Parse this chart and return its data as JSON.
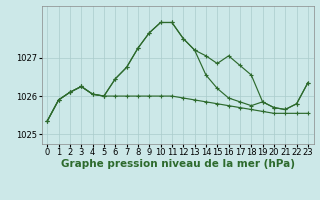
{
  "title": "Graphe pression niveau de la mer (hPa)",
  "xlabel_hours": [
    0,
    1,
    2,
    3,
    4,
    5,
    6,
    7,
    8,
    9,
    10,
    11,
    12,
    13,
    14,
    15,
    16,
    17,
    18,
    19,
    20,
    21,
    22,
    23
  ],
  "series1": [
    1025.35,
    1025.9,
    1026.1,
    1026.25,
    1026.05,
    1026.0,
    1026.45,
    1026.75,
    1027.25,
    1027.65,
    1027.92,
    1027.92,
    1027.5,
    1027.2,
    1027.05,
    1026.85,
    1027.05,
    1026.8,
    1026.55,
    1025.85,
    1025.7,
    1025.65,
    1025.8,
    1026.35
  ],
  "series2": [
    1025.35,
    1025.9,
    1026.1,
    1026.25,
    1026.05,
    1026.0,
    1026.0,
    1026.0,
    1026.0,
    1026.0,
    1026.0,
    1026.0,
    1025.95,
    1025.9,
    1025.85,
    1025.8,
    1025.75,
    1025.7,
    1025.65,
    1025.6,
    1025.55,
    1025.55,
    1025.55,
    1025.55
  ],
  "series3": [
    1025.35,
    1025.9,
    1026.1,
    1026.25,
    1026.05,
    1026.0,
    1026.45,
    1026.75,
    1027.25,
    1027.65,
    1027.92,
    1027.92,
    1027.5,
    1027.2,
    1026.55,
    1026.2,
    1025.95,
    1025.85,
    1025.75,
    1025.85,
    1025.7,
    1025.65,
    1025.8,
    1026.35
  ],
  "line_color": "#2d6a2d",
  "bg_color": "#cce8e8",
  "grid_color": "#aacccc",
  "ylim": [
    1024.75,
    1028.35
  ],
  "yticks": [
    1025,
    1026,
    1027
  ],
  "title_fontsize": 7.5,
  "tick_fontsize": 6.0
}
